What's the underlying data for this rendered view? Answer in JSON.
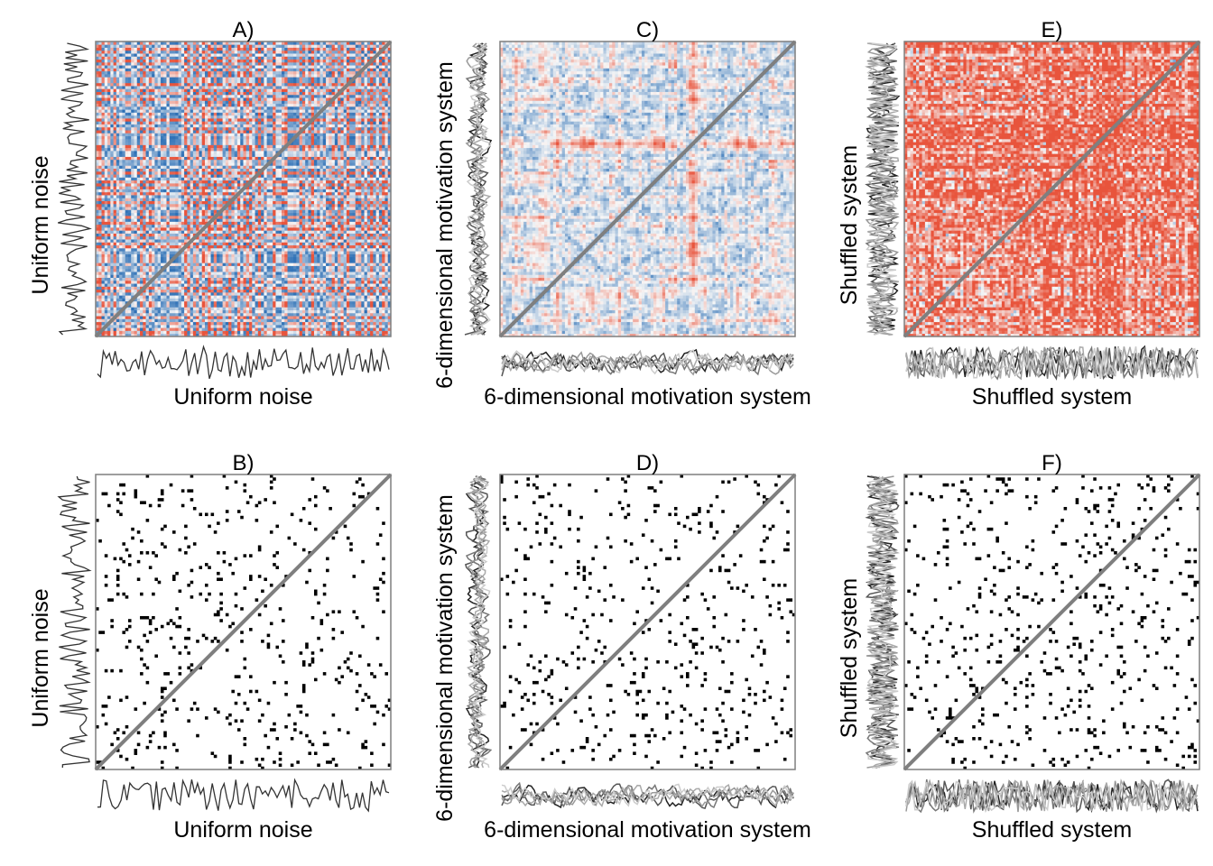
{
  "chart_data": [
    {
      "id": "A",
      "type": "heatmap",
      "subtype": "recurrence-distance-matrix",
      "title": "A)",
      "xlabel": "Uniform noise",
      "ylabel": "Uniform noise",
      "n_series": 1,
      "diagonal": "line-of-identity",
      "colors": {
        "low": "#2c6fb5",
        "mid": "#f7f7f7",
        "high": "#e8543c",
        "diagonal": "#7f7f7f",
        "trace": "#333333"
      }
    },
    {
      "id": "B",
      "type": "heatmap",
      "subtype": "thresholded-recurrence-plot",
      "title": "B)",
      "xlabel": "Uniform noise",
      "ylabel": "Uniform noise",
      "n_series": 1,
      "recurrence_rate": 0.05,
      "diagonal": "line-of-identity",
      "colors": {
        "recurrent": "#000000",
        "background": "#ffffff",
        "diagonal": "#7f7f7f",
        "trace": "#333333"
      }
    },
    {
      "id": "C",
      "type": "heatmap",
      "subtype": "recurrence-distance-matrix",
      "title": "C)",
      "xlabel": "6-dimensional motivation system",
      "ylabel": "6-dimensional motivation system",
      "n_series": 6,
      "diagonal": "line-of-identity",
      "colors": {
        "low": "#2c6fb5",
        "mid": "#f7f7f7",
        "high": "#e8543c",
        "diagonal": "#7f7f7f",
        "trace": "#777777"
      }
    },
    {
      "id": "D",
      "type": "heatmap",
      "subtype": "thresholded-recurrence-plot",
      "title": "D)",
      "xlabel": "6-dimensional motivation system",
      "ylabel": "6-dimensional motivation system",
      "n_series": 6,
      "recurrence_rate": 0.05,
      "diagonal": "line-of-identity",
      "colors": {
        "recurrent": "#000000",
        "background": "#ffffff",
        "diagonal": "#7f7f7f",
        "trace": "#777777"
      }
    },
    {
      "id": "E",
      "type": "heatmap",
      "subtype": "recurrence-distance-matrix",
      "title": "E)",
      "xlabel": "Shuffled system",
      "ylabel": "Shuffled system",
      "n_series": 6,
      "diagonal": "line-of-identity",
      "colors": {
        "low": "#2c6fb5",
        "mid": "#f7f7f7",
        "high": "#e8543c",
        "diagonal": "#7f7f7f",
        "trace": "#777777"
      }
    },
    {
      "id": "F",
      "type": "heatmap",
      "subtype": "thresholded-recurrence-plot",
      "title": "F)",
      "xlabel": "Shuffled system",
      "ylabel": "Shuffled system",
      "n_series": 6,
      "recurrence_rate": 0.05,
      "diagonal": "line-of-identity",
      "colors": {
        "recurrent": "#000000",
        "background": "#ffffff",
        "diagonal": "#7f7f7f",
        "trace": "#777777"
      }
    }
  ]
}
